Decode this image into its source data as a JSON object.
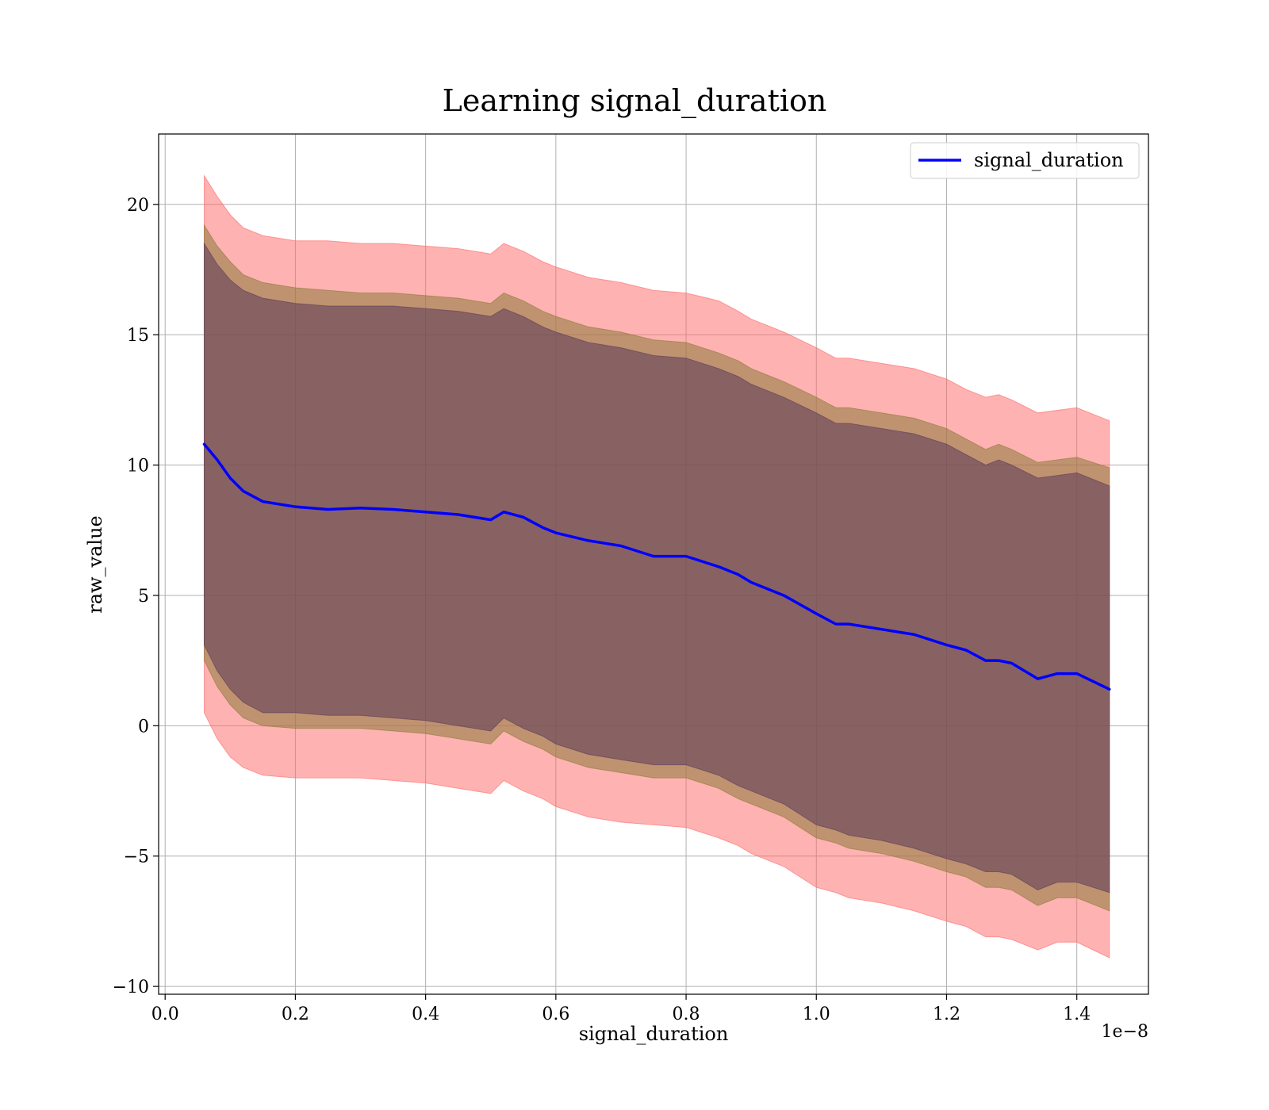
{
  "chart_data": {
    "type": "line",
    "title": "Learning signal_duration",
    "xlabel": "signal_duration",
    "ylabel": "raw_value",
    "x_offset_label": "1e−8",
    "xlim": [
      -0.01,
      1.51
    ],
    "ylim": [
      -10.3,
      22.7
    ],
    "x_ticks": [
      0.0,
      0.2,
      0.4,
      0.6,
      0.8,
      1.0,
      1.2,
      1.4
    ],
    "x_tick_labels": [
      "0.0",
      "0.2",
      "0.4",
      "0.6",
      "0.8",
      "1.0",
      "1.2",
      "1.4"
    ],
    "y_ticks": [
      -10,
      -5,
      0,
      5,
      10,
      15,
      20
    ],
    "y_tick_labels": [
      "−10",
      "−5",
      "0",
      "5",
      "10",
      "15",
      "20"
    ],
    "grid": true,
    "legend": {
      "position": "top-right",
      "entries": [
        "signal_duration"
      ]
    },
    "x": [
      0.06,
      0.08,
      0.1,
      0.12,
      0.15,
      0.2,
      0.25,
      0.3,
      0.35,
      0.4,
      0.45,
      0.5,
      0.52,
      0.55,
      0.58,
      0.6,
      0.65,
      0.7,
      0.75,
      0.8,
      0.85,
      0.88,
      0.9,
      0.95,
      1.0,
      1.03,
      1.05,
      1.1,
      1.15,
      1.2,
      1.23,
      1.26,
      1.28,
      1.3,
      1.34,
      1.37,
      1.4,
      1.45
    ],
    "series": [
      {
        "name": "signal_duration",
        "color": "#0000ff",
        "values": [
          10.8,
          10.2,
          9.5,
          9.0,
          8.6,
          8.4,
          8.3,
          8.35,
          8.3,
          8.2,
          8.1,
          7.9,
          8.2,
          8.0,
          7.6,
          7.4,
          7.1,
          6.9,
          6.5,
          6.5,
          6.1,
          5.8,
          5.5,
          5.0,
          4.3,
          3.9,
          3.9,
          3.7,
          3.5,
          3.1,
          2.9,
          2.5,
          2.5,
          2.4,
          1.8,
          2.0,
          2.0,
          1.4
        ]
      }
    ],
    "bands": [
      {
        "color": "#ff6666",
        "opacity": 0.5,
        "lower": [
          0.5,
          -0.5,
          -1.2,
          -1.6,
          -1.9,
          -2.0,
          -2.0,
          -2.0,
          -2.1,
          -2.2,
          -2.4,
          -2.6,
          -2.1,
          -2.5,
          -2.8,
          -3.1,
          -3.5,
          -3.7,
          -3.8,
          -3.9,
          -4.3,
          -4.6,
          -4.9,
          -5.4,
          -6.2,
          -6.4,
          -6.6,
          -6.8,
          -7.1,
          -7.5,
          -7.7,
          -8.1,
          -8.1,
          -8.2,
          -8.6,
          -8.3,
          -8.3,
          -8.9
        ],
        "upper": [
          21.1,
          20.3,
          19.6,
          19.1,
          18.8,
          18.6,
          18.6,
          18.5,
          18.5,
          18.4,
          18.3,
          18.1,
          18.5,
          18.2,
          17.8,
          17.6,
          17.2,
          17.0,
          16.7,
          16.6,
          16.3,
          15.9,
          15.6,
          15.1,
          14.5,
          14.1,
          14.1,
          13.9,
          13.7,
          13.3,
          12.9,
          12.6,
          12.7,
          12.5,
          12.0,
          12.1,
          12.2,
          11.7
        ]
      },
      {
        "color": "#8c7a3a",
        "opacity": 0.55,
        "lower": [
          2.5,
          1.5,
          0.8,
          0.3,
          0.0,
          -0.1,
          -0.1,
          -0.1,
          -0.2,
          -0.3,
          -0.5,
          -0.7,
          -0.2,
          -0.6,
          -0.9,
          -1.2,
          -1.6,
          -1.8,
          -2.0,
          -2.0,
          -2.4,
          -2.8,
          -3.0,
          -3.5,
          -4.3,
          -4.5,
          -4.7,
          -4.9,
          -5.2,
          -5.6,
          -5.8,
          -6.2,
          -6.2,
          -6.3,
          -6.9,
          -6.6,
          -6.6,
          -7.1
        ],
        "upper": [
          19.2,
          18.4,
          17.8,
          17.3,
          17.0,
          16.8,
          16.7,
          16.6,
          16.6,
          16.5,
          16.4,
          16.2,
          16.6,
          16.3,
          15.9,
          15.7,
          15.3,
          15.1,
          14.8,
          14.7,
          14.3,
          14.0,
          13.7,
          13.2,
          12.6,
          12.2,
          12.2,
          12.0,
          11.8,
          11.4,
          11.0,
          10.6,
          10.8,
          10.6,
          10.1,
          10.2,
          10.3,
          9.9
        ]
      },
      {
        "color": "#5a3a5a",
        "opacity": 0.55,
        "lower": [
          3.1,
          2.1,
          1.4,
          0.9,
          0.5,
          0.5,
          0.4,
          0.4,
          0.3,
          0.2,
          0.0,
          -0.2,
          0.3,
          -0.1,
          -0.4,
          -0.7,
          -1.1,
          -1.3,
          -1.5,
          -1.5,
          -1.9,
          -2.3,
          -2.5,
          -3.0,
          -3.8,
          -4.0,
          -4.2,
          -4.4,
          -4.7,
          -5.1,
          -5.3,
          -5.6,
          -5.6,
          -5.7,
          -6.3,
          -6.0,
          -6.0,
          -6.4
        ],
        "upper": [
          18.5,
          17.7,
          17.1,
          16.7,
          16.4,
          16.2,
          16.1,
          16.1,
          16.1,
          16.0,
          15.9,
          15.7,
          16.0,
          15.7,
          15.3,
          15.1,
          14.7,
          14.5,
          14.2,
          14.1,
          13.7,
          13.4,
          13.1,
          12.6,
          12.0,
          11.6,
          11.6,
          11.4,
          11.2,
          10.8,
          10.4,
          10.0,
          10.2,
          10.0,
          9.5,
          9.6,
          9.7,
          9.2
        ]
      }
    ]
  }
}
